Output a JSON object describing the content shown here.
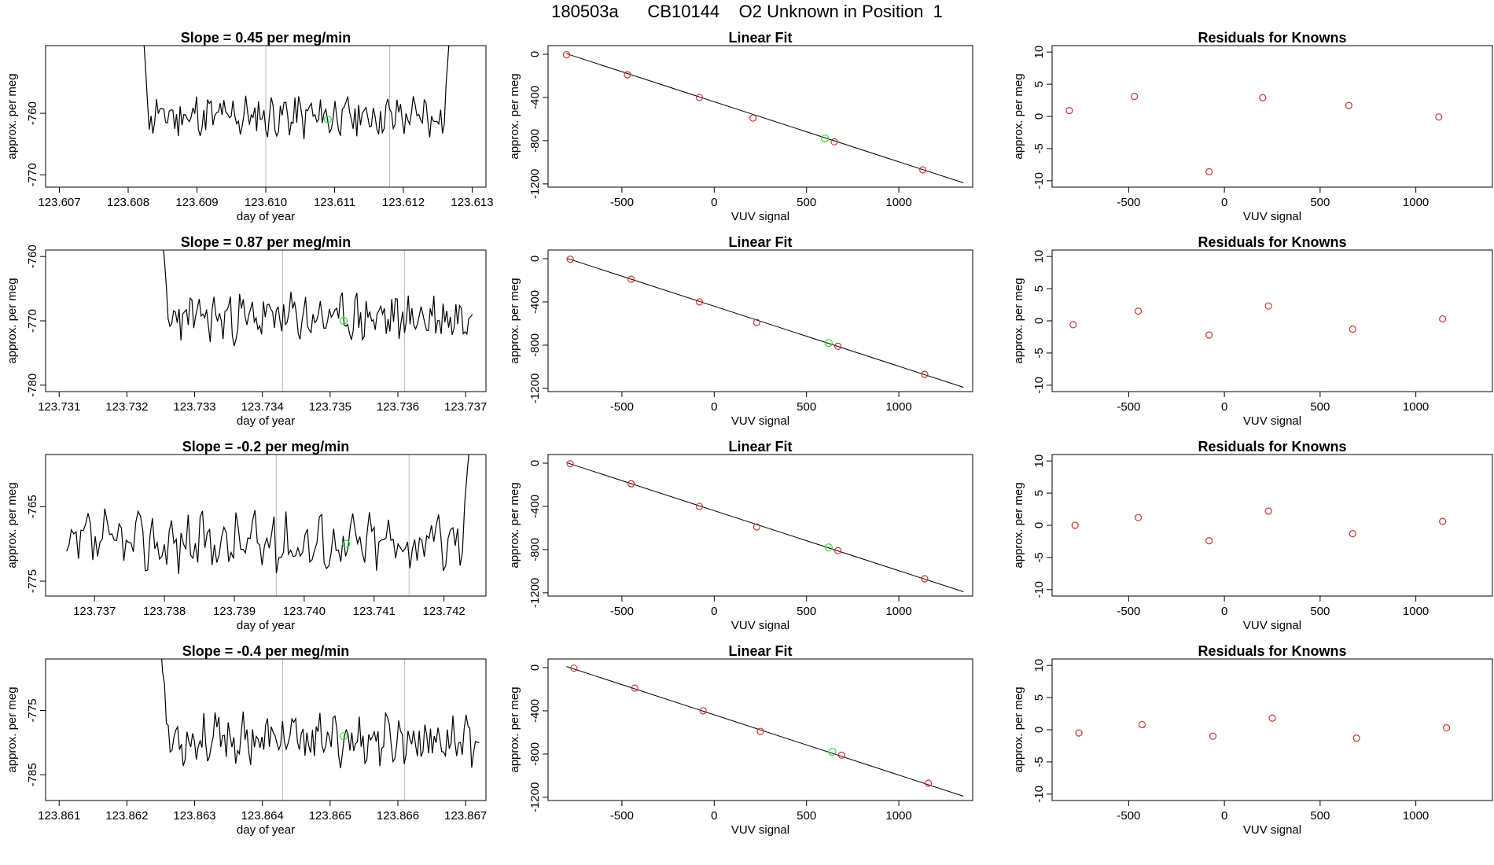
{
  "page": {
    "title": "180503a      CB10144    O2 Unknown in Position  1"
  },
  "chart_data": [
    {
      "type": "line",
      "title": "Slope =  0.45  per meg/min",
      "xlabel": "day of year",
      "ylabel": "approx. per meg",
      "xlim": [
        123.6068,
        123.6132
      ],
      "ylim": [
        -772,
        -749
      ],
      "xticks": [
        123.607,
        123.608,
        123.609,
        123.61,
        123.611,
        123.612,
        123.613
      ],
      "xtick_labels": [
        "123.607",
        "123.608",
        "123.609",
        "123.610",
        "123.611",
        "123.612",
        "123.613"
      ],
      "yticks": [
        -760,
        -770
      ],
      "ytick_labels": [
        "-760",
        "-770"
      ],
      "vlines": [
        123.61,
        123.6118
      ],
      "point": [
        123.6109,
        -761
      ],
      "series_seed": 11,
      "series_xrange": [
        123.6082,
        123.6127
      ],
      "series_base": -760.5,
      "series_amp": 2.8,
      "series_start_y": -745,
      "series_end_y": -742
    },
    {
      "type": "scatter",
      "title": "Linear Fit",
      "xlabel": "VUV signal",
      "ylabel": "approx. per meg",
      "xlim": [
        -900,
        1400
      ],
      "ylim": [
        -1230,
        80
      ],
      "xticks": [
        -500,
        0,
        500,
        1000
      ],
      "xtick_labels": [
        "-500",
        "0",
        "500",
        "1000"
      ],
      "yticks": [
        0,
        -400,
        -800,
        -1200
      ],
      "ytick_labels": [
        "0",
        "-400",
        "-800",
        "-1200"
      ],
      "points_x": [
        -800,
        -470,
        -80,
        210,
        650,
        1130
      ],
      "points_y": [
        -5,
        -190,
        -400,
        -590,
        -810,
        -1070
      ],
      "highlight": [
        600,
        -780
      ],
      "line": [
        [
          -800,
          5
        ],
        [
          1350,
          -1190
        ]
      ]
    },
    {
      "type": "scatter",
      "title": "Residuals for Knowns",
      "xlabel": "VUV signal",
      "ylabel": "approx. per meg",
      "xlim": [
        -900,
        1400
      ],
      "ylim": [
        -11,
        11
      ],
      "xticks": [
        -500,
        0,
        500,
        1000
      ],
      "xtick_labels": [
        "-500",
        "0",
        "500",
        "1000"
      ],
      "yticks": [
        10,
        5,
        0,
        -5,
        -10
      ],
      "ytick_labels": [
        "10",
        "5",
        "0",
        "-5",
        "-10"
      ],
      "points_x": [
        -810,
        -470,
        -80,
        200,
        650,
        1120
      ],
      "points_y": [
        0.9,
        3.1,
        -8.6,
        2.9,
        1.7,
        -0.1
      ]
    },
    {
      "type": "line",
      "title": "Slope =  0.87  per meg/min",
      "xlabel": "day of year",
      "ylabel": "approx. per meg",
      "xlim": [
        123.7308,
        123.7373
      ],
      "ylim": [
        -781,
        -759
      ],
      "xticks": [
        123.731,
        123.732,
        123.733,
        123.734,
        123.735,
        123.736,
        123.737
      ],
      "xtick_labels": [
        "123.731",
        "123.732",
        "123.733",
        "123.734",
        "123.735",
        "123.736",
        "123.737"
      ],
      "yticks": [
        -760,
        -770,
        -780
      ],
      "ytick_labels": [
        "-760",
        "-770",
        "-780"
      ],
      "vlines": [
        123.7343,
        123.7361
      ],
      "point": [
        123.7352,
        -770
      ],
      "series_seed": 23,
      "series_xrange": [
        123.7325,
        123.7371
      ],
      "series_base": -769.5,
      "series_amp": 3.0,
      "series_start_y": -755,
      "series_end_y": -769
    },
    {
      "type": "scatter",
      "title": "Linear Fit",
      "xlabel": "VUV signal",
      "ylabel": "approx. per meg",
      "xlim": [
        -900,
        1400
      ],
      "ylim": [
        -1230,
        80
      ],
      "xticks": [
        -500,
        0,
        500,
        1000
      ],
      "xtick_labels": [
        "-500",
        "0",
        "500",
        "1000"
      ],
      "yticks": [
        0,
        -400,
        -800,
        -1200
      ],
      "ytick_labels": [
        "0",
        "-400",
        "-800",
        "-1200"
      ],
      "points_x": [
        -780,
        -450,
        -80,
        230,
        670,
        1140
      ],
      "points_y": [
        -5,
        -190,
        -400,
        -590,
        -810,
        -1070
      ],
      "highlight": [
        620,
        -780
      ],
      "line": [
        [
          -800,
          5
        ],
        [
          1350,
          -1190
        ]
      ]
    },
    {
      "type": "scatter",
      "title": "Residuals for Knowns",
      "xlabel": "VUV signal",
      "ylabel": "approx. per meg",
      "xlim": [
        -900,
        1400
      ],
      "ylim": [
        -11,
        11
      ],
      "xticks": [
        -500,
        0,
        500,
        1000
      ],
      "xtick_labels": [
        "-500",
        "0",
        "500",
        "1000"
      ],
      "yticks": [
        10,
        5,
        0,
        -5,
        -10
      ],
      "ytick_labels": [
        "10",
        "5",
        "0",
        "-5",
        "-10"
      ],
      "points_x": [
        -790,
        -450,
        -80,
        230,
        670,
        1140
      ],
      "points_y": [
        -0.6,
        1.5,
        -2.2,
        2.3,
        -1.3,
        0.3
      ]
    },
    {
      "type": "line",
      "title": "Slope =  -0.2  per meg/min",
      "xlabel": "day of year",
      "ylabel": "approx. per meg",
      "xlim": [
        123.7363,
        123.7426
      ],
      "ylim": [
        -777,
        -758
      ],
      "xticks": [
        123.737,
        123.738,
        123.739,
        123.74,
        123.741,
        123.742
      ],
      "xtick_labels": [
        "123.737",
        "123.738",
        "123.739",
        "123.740",
        "123.741",
        "123.742"
      ],
      "yticks": [
        -765,
        -775
      ],
      "ytick_labels": [
        "-765",
        "-775"
      ],
      "vlines": [
        123.7396,
        123.7415
      ],
      "point": [
        123.7406,
        -770
      ],
      "series_seed": 37,
      "series_xrange": [
        123.7366,
        123.7424
      ],
      "series_base": -769.8,
      "series_amp": 3.2,
      "series_start_y": -771,
      "series_end_y": -752
    },
    {
      "type": "scatter",
      "title": "Linear Fit",
      "xlabel": "VUV signal",
      "ylabel": "approx. per meg",
      "xlim": [
        -900,
        1400
      ],
      "ylim": [
        -1230,
        80
      ],
      "xticks": [
        -500,
        0,
        500,
        1000
      ],
      "xtick_labels": [
        "-500",
        "0",
        "500",
        "1000"
      ],
      "yticks": [
        0,
        -400,
        -800,
        -1200
      ],
      "ytick_labels": [
        "0",
        "-400",
        "-800",
        "-1200"
      ],
      "points_x": [
        -780,
        -450,
        -80,
        230,
        670,
        1140
      ],
      "points_y": [
        -5,
        -190,
        -400,
        -590,
        -810,
        -1070
      ],
      "highlight": [
        620,
        -780
      ],
      "line": [
        [
          -800,
          5
        ],
        [
          1350,
          -1190
        ]
      ]
    },
    {
      "type": "scatter",
      "title": "Residuals for Knowns",
      "xlabel": "VUV signal",
      "ylabel": "approx. per meg",
      "xlim": [
        -900,
        1400
      ],
      "ylim": [
        -11,
        11
      ],
      "xticks": [
        -500,
        0,
        500,
        1000
      ],
      "xtick_labels": [
        "-500",
        "0",
        "500",
        "1000"
      ],
      "yticks": [
        10,
        5,
        0,
        -5,
        -10
      ],
      "ytick_labels": [
        "10",
        "5",
        "0",
        "-5",
        "-10"
      ],
      "points_x": [
        -780,
        -450,
        -80,
        230,
        670,
        1140
      ],
      "points_y": [
        0.0,
        1.2,
        -2.4,
        2.2,
        -1.3,
        0.6
      ]
    },
    {
      "type": "line",
      "title": "Slope =  -0.4  per meg/min",
      "xlabel": "day of year",
      "ylabel": "approx. per meg",
      "xlim": [
        123.8608,
        123.8673
      ],
      "ylim": [
        -789,
        -767
      ],
      "xticks": [
        123.861,
        123.862,
        123.863,
        123.864,
        123.865,
        123.866,
        123.867
      ],
      "xtick_labels": [
        "123.861",
        "123.862",
        "123.863",
        "123.864",
        "123.865",
        "123.866",
        "123.867"
      ],
      "yticks": [
        -775,
        -785
      ],
      "ytick_labels": [
        "-775",
        "-785"
      ],
      "vlines": [
        123.8643,
        123.8661
      ],
      "point": [
        123.8652,
        -779
      ],
      "series_seed": 53,
      "series_xrange": [
        123.8625,
        123.8672
      ],
      "series_base": -779.5,
      "series_amp": 3.0,
      "series_start_y": -765,
      "series_end_y": -780
    },
    {
      "type": "scatter",
      "title": "Linear Fit",
      "xlabel": "VUV signal",
      "ylabel": "approx. per meg",
      "xlim": [
        -900,
        1400
      ],
      "ylim": [
        -1230,
        80
      ],
      "xticks": [
        -500,
        0,
        500,
        1000
      ],
      "xtick_labels": [
        "-500",
        "0",
        "500",
        "1000"
      ],
      "yticks": [
        0,
        -400,
        -800,
        -1200
      ],
      "ytick_labels": [
        "0",
        "-400",
        "-800",
        "-1200"
      ],
      "points_x": [
        -760,
        -430,
        -60,
        250,
        690,
        1160
      ],
      "points_y": [
        -5,
        -190,
        -400,
        -590,
        -810,
        -1070
      ],
      "highlight": [
        640,
        -780
      ],
      "line": [
        [
          -800,
          10
        ],
        [
          1350,
          -1190
        ]
      ]
    },
    {
      "type": "scatter",
      "title": "Residuals for Knowns",
      "xlabel": "VUV signal",
      "ylabel": "approx. per meg",
      "xlim": [
        -900,
        1400
      ],
      "ylim": [
        -11,
        11
      ],
      "xticks": [
        -500,
        0,
        500,
        1000
      ],
      "xtick_labels": [
        "-500",
        "0",
        "500",
        "1000"
      ],
      "yticks": [
        10,
        5,
        0,
        -5,
        -10
      ],
      "ytick_labels": [
        "10",
        "5",
        "0",
        "-5",
        "-10"
      ],
      "points_x": [
        -760,
        -430,
        -60,
        250,
        690,
        1160
      ],
      "points_y": [
        -0.5,
        0.8,
        -1.0,
        1.8,
        -1.3,
        0.3
      ]
    }
  ]
}
